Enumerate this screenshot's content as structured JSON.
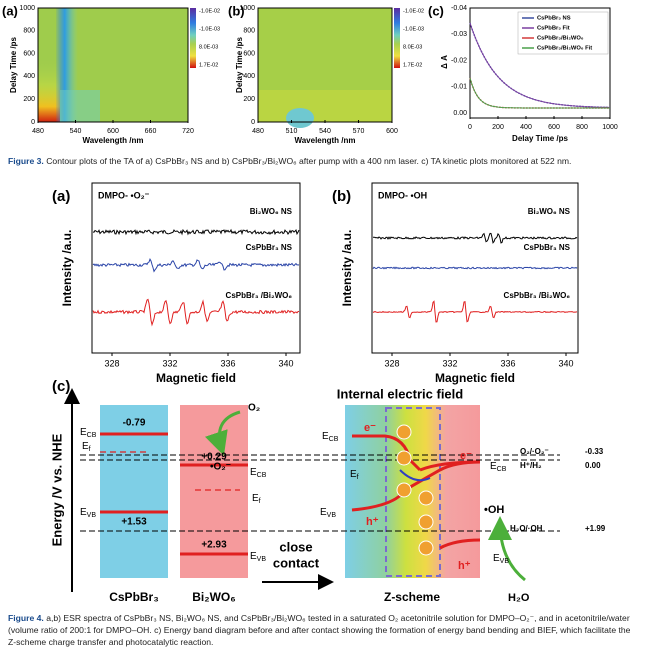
{
  "figure3": {
    "panels": [
      {
        "label": "(a)",
        "y_label": "Delay Time /ps",
        "x_label": "Wavelength /nm",
        "y_ticks": [
          "0",
          "200",
          "400",
          "600",
          "800",
          "1000"
        ],
        "x_ticks": [
          "480",
          "540",
          "600",
          "660",
          "720"
        ],
        "colorbar": [
          "-1.0E-02",
          "-1.0E-03",
          "8.0E-03",
          "1.7E-02"
        ]
      },
      {
        "label": "(b)",
        "y_label": "Delay Time /ps",
        "x_label": "Wavelength /nm",
        "y_ticks": [
          "0",
          "200",
          "400",
          "600",
          "800",
          "1000"
        ],
        "x_ticks": [
          "480",
          "510",
          "540",
          "570",
          "600"
        ],
        "colorbar": [
          "-1.0E-02",
          "-1.0E-03",
          "8.0E-03",
          "1.7E-02"
        ]
      },
      {
        "label": "(c)",
        "y_label": "Δ A",
        "x_label": "Delay Time /ps",
        "y_ticks": [
          "0.00",
          "-0.01",
          "-0.02",
          "-0.03",
          "-0.04"
        ],
        "x_ticks": [
          "0",
          "200",
          "400",
          "600",
          "800",
          "1000"
        ],
        "legend": [
          "CsPbBr₃ NS",
          "CsPbBr₃ Fit",
          "CsPbBr₃/Bi₂WO₆",
          "CsPbBr₃/Bi₂WO₆ Fit"
        ]
      }
    ],
    "caption": {
      "label": "Figure 3.",
      "text": "Contour plots of the TA of a) CsPbBr₃ NS and b) CsPbBr₃/Bi₂WO₆ after pump with a 400 nm laser. c) TA kinetic plots monitored at 522 nm."
    }
  },
  "figure4": {
    "esr": [
      {
        "label": "(a)",
        "adduct": "DMPO- •O₂⁻",
        "traces": [
          "Bi₂WO₆ NS",
          "CsPbBr₃ NS",
          "CsPbBr₃ /Bi₂WO₆"
        ]
      },
      {
        "label": "(b)",
        "adduct": "DMPO- •OH",
        "traces": [
          "Bi₂WO₆ NS",
          "CsPbBr₃ NS",
          "CsPbBr₃ /Bi₂WO₆"
        ]
      }
    ],
    "esr_y_label": "Intensity /a.u.",
    "esr_x_label": "Magnetic field",
    "esr_x_ticks": [
      "328",
      "332",
      "336",
      "340"
    ],
    "band": {
      "label": "(c)",
      "y_label": "Energy /V vs. NHE",
      "e": "E",
      "cb": "CB",
      "vb": "VB",
      "f": "f",
      "cspbbr3": {
        "name": "CsPbBr₃",
        "cb": "-0.79",
        "vb": "+1.53"
      },
      "bi2wo6": {
        "name": "Bi₂WO₆",
        "cb": "+0.29",
        "vb": "+2.93"
      },
      "o2": "O₂",
      "o2_radical": "•O₂⁻",
      "contact": [
        "close",
        "contact"
      ],
      "field": "Internal electric field",
      "zscheme": "Z-scheme",
      "electron": "e⁻",
      "hole": "h⁺",
      "oh": "•OH",
      "h2o": "H₂O",
      "levels": [
        {
          "name": "O₂/·O₂⁻",
          "value": "-0.33"
        },
        {
          "name": "H⁺/H₂",
          "value": "0.00"
        },
        {
          "name": "H₂O/·OH",
          "value": "+1.99"
        }
      ]
    },
    "caption": {
      "label": "Figure 4.",
      "text": "a,b) ESR spectra of CsPbBr₃ NS, Bi₂WO₆ NS, and CsPbBr₃/Bi₂WO₆ tested in a saturated O₂ acetonitrile solution for DMPO–O₂⁻, and in acetonitrile/water (volume ratio of 200:1 for DMPO–OH. c) Energy band diagram before and after contact showing the formation of energy band bending and BIEF, which facilitate the Z-scheme charge transfer and photocatalytic reaction."
    }
  }
}
